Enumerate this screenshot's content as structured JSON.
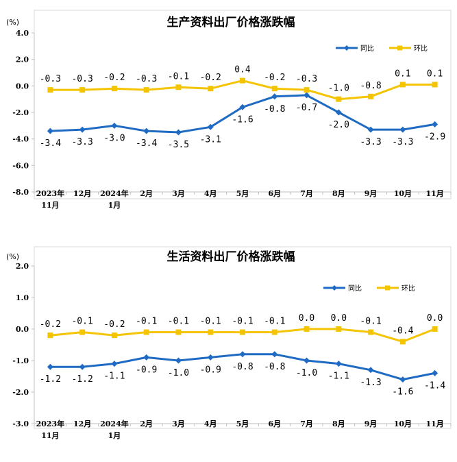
{
  "colors": {
    "yoy": "#1f6bc4",
    "mom": "#f5c400",
    "frame": "#d9d9d9",
    "axis": "#bfbfbf"
  },
  "chart_data": [
    {
      "type": "line",
      "title": "生产资料出厂价格涨跌幅",
      "unit": "(%)",
      "categories": [
        [
          "2023年",
          "11月"
        ],
        [
          "12月"
        ],
        [
          "2024年",
          "1月"
        ],
        [
          "2月"
        ],
        [
          "3月"
        ],
        [
          "4月"
        ],
        [
          "5月"
        ],
        [
          "6月"
        ],
        [
          "7月"
        ],
        [
          "8月"
        ],
        [
          "9月"
        ],
        [
          "10月"
        ],
        [
          "11月"
        ]
      ],
      "ylim": [
        -8.0,
        4.0
      ],
      "yticks": [
        "4.0",
        "2.0",
        "0.0",
        "-2.0",
        "-4.0",
        "-6.0",
        "-8.0"
      ],
      "ytick_values": [
        4,
        2,
        0,
        -2,
        -4,
        -6,
        -8
      ],
      "legend_position": "top-right",
      "grid": false,
      "series": [
        {
          "name": "同比",
          "key": "yoy",
          "values": [
            -3.4,
            -3.3,
            -3.0,
            -3.4,
            -3.5,
            -3.1,
            -1.6,
            -0.8,
            -0.7,
            -2.0,
            -3.3,
            -3.3,
            -2.9
          ],
          "labels": [
            "-3.4",
            "-3.3",
            "-3.0",
            "-3.4",
            "-3.5",
            "-3.1",
            "-1.6",
            "-0.8",
            "-0.7",
            "-2.0",
            "-3.3",
            "-3.3",
            "-2.9"
          ]
        },
        {
          "name": "环比",
          "key": "mom",
          "values": [
            -0.3,
            -0.3,
            -0.2,
            -0.3,
            -0.1,
            -0.2,
            0.4,
            -0.2,
            -0.3,
            -1.0,
            -0.8,
            0.1,
            0.1
          ],
          "labels": [
            "-0.3",
            "-0.3",
            "-0.2",
            "-0.3",
            "-0.1",
            "-0.2",
            "0.4",
            "-0.2",
            "-0.3",
            "-1.0",
            "-0.8",
            "0.1",
            "0.1"
          ]
        }
      ]
    },
    {
      "type": "line",
      "title": "生活资料出厂价格涨跌幅",
      "unit": "(%)",
      "categories": [
        [
          "2023年",
          "11月"
        ],
        [
          "12月"
        ],
        [
          "2024年",
          "1月"
        ],
        [
          "2月"
        ],
        [
          "3月"
        ],
        [
          "4月"
        ],
        [
          "5月"
        ],
        [
          "6月"
        ],
        [
          "7月"
        ],
        [
          "8月"
        ],
        [
          "9月"
        ],
        [
          "10月"
        ],
        [
          "11月"
        ]
      ],
      "ylim": [
        -3.0,
        2.0
      ],
      "yticks": [
        "2.0",
        "1.0",
        "0.0",
        "-1.0",
        "-2.0",
        "-3.0"
      ],
      "ytick_values": [
        2,
        1,
        0,
        -1,
        -2,
        -3
      ],
      "legend_position": "top-right",
      "grid": false,
      "series": [
        {
          "name": "同比",
          "key": "yoy",
          "values": [
            -1.2,
            -1.2,
            -1.1,
            -0.9,
            -1.0,
            -0.9,
            -0.8,
            -0.8,
            -1.0,
            -1.1,
            -1.3,
            -1.6,
            -1.4
          ],
          "labels": [
            "-1.2",
            "-1.2",
            "-1.1",
            "-0.9",
            "-1.0",
            "-0.9",
            "-0.8",
            "-0.8",
            "-1.0",
            "-1.1",
            "-1.3",
            "-1.6",
            "-1.4"
          ]
        },
        {
          "name": "环比",
          "key": "mom",
          "values": [
            -0.2,
            -0.1,
            -0.2,
            -0.1,
            -0.1,
            -0.1,
            -0.1,
            -0.1,
            0.0,
            0.0,
            -0.1,
            -0.4,
            0.0
          ],
          "labels": [
            "-0.2",
            "-0.1",
            "-0.2",
            "-0.1",
            "-0.1",
            "-0.1",
            "-0.1",
            "-0.1",
            "0.0",
            "0.0",
            "-0.1",
            "-0.4",
            "0.0"
          ]
        }
      ]
    }
  ]
}
